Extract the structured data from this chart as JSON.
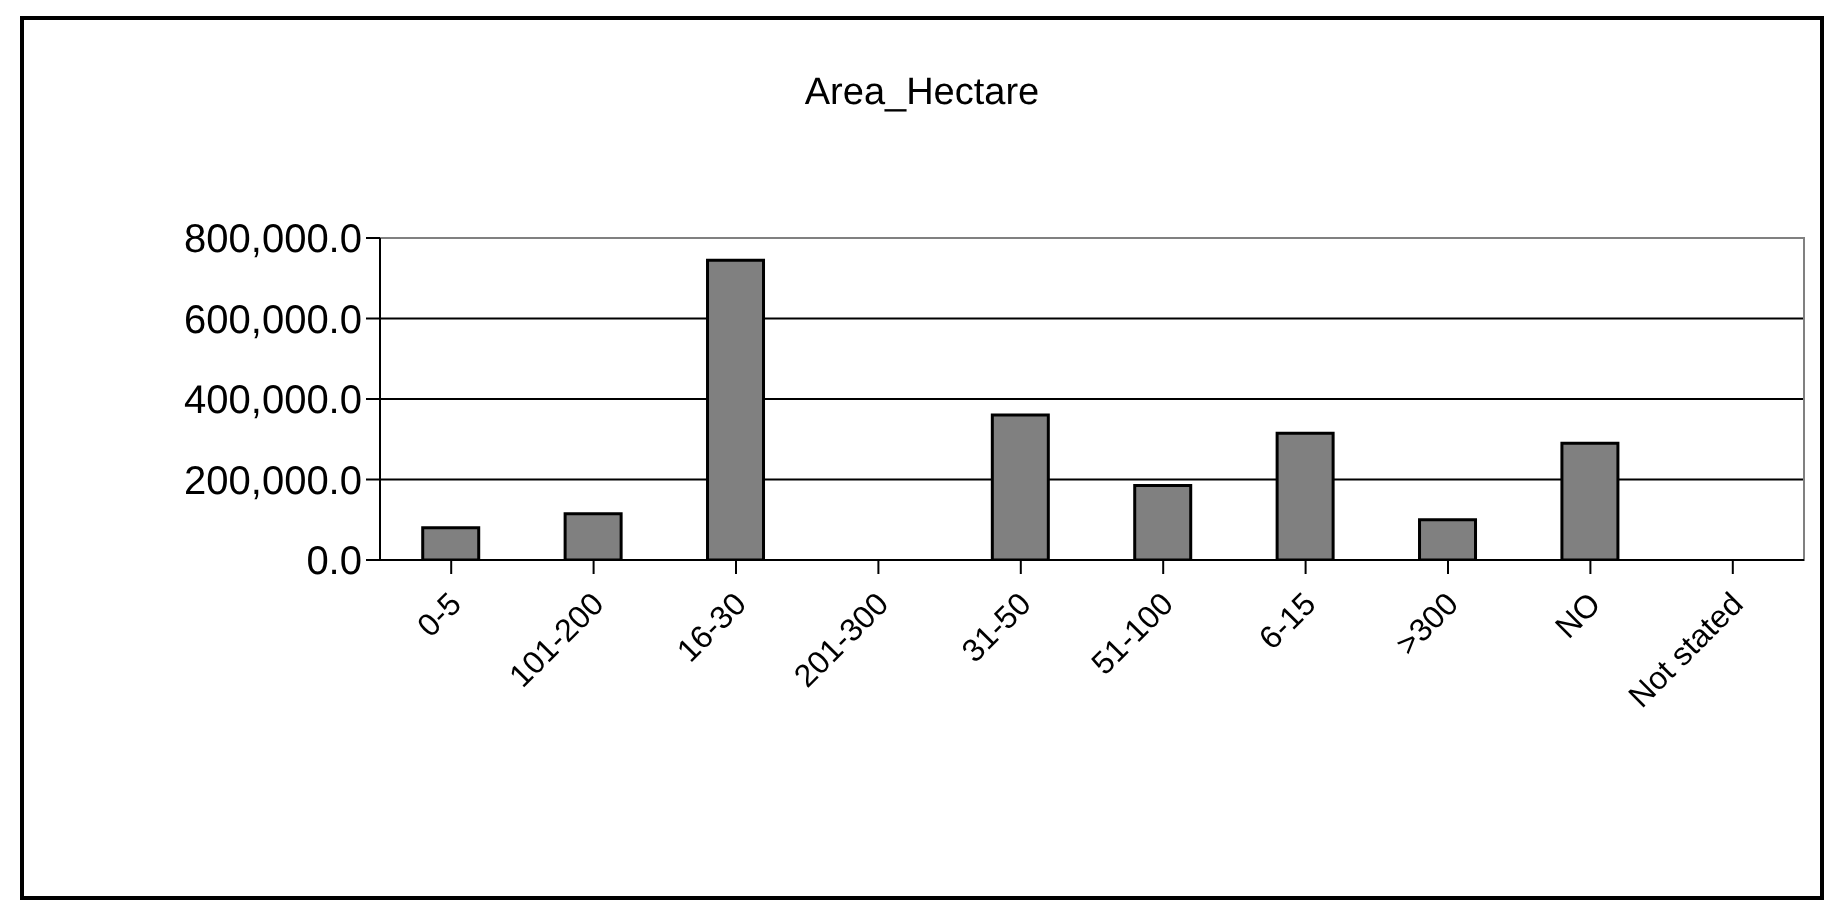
{
  "chart_data": {
    "type": "bar",
    "title": "Area_Hectare",
    "categories": [
      "0-5",
      "101-200",
      "16-30",
      "201-300",
      "31-50",
      "51-100",
      "6-15",
      ">300",
      "NO",
      "Not stated"
    ],
    "values": [
      80000,
      115000,
      745000,
      0,
      360000,
      185000,
      315000,
      100000,
      290000,
      0
    ],
    "color": "#808080",
    "ylim": [
      0,
      800000
    ],
    "yticks": [
      {
        "value": 0,
        "label": "0.0"
      },
      {
        "value": 200000,
        "label": "200,000.0"
      },
      {
        "value": 400000,
        "label": "400,000.0"
      },
      {
        "value": 600000,
        "label": "600,000.0"
      },
      {
        "value": 800000,
        "label": "800,000.0"
      }
    ],
    "grid": "y",
    "legend": false
  }
}
